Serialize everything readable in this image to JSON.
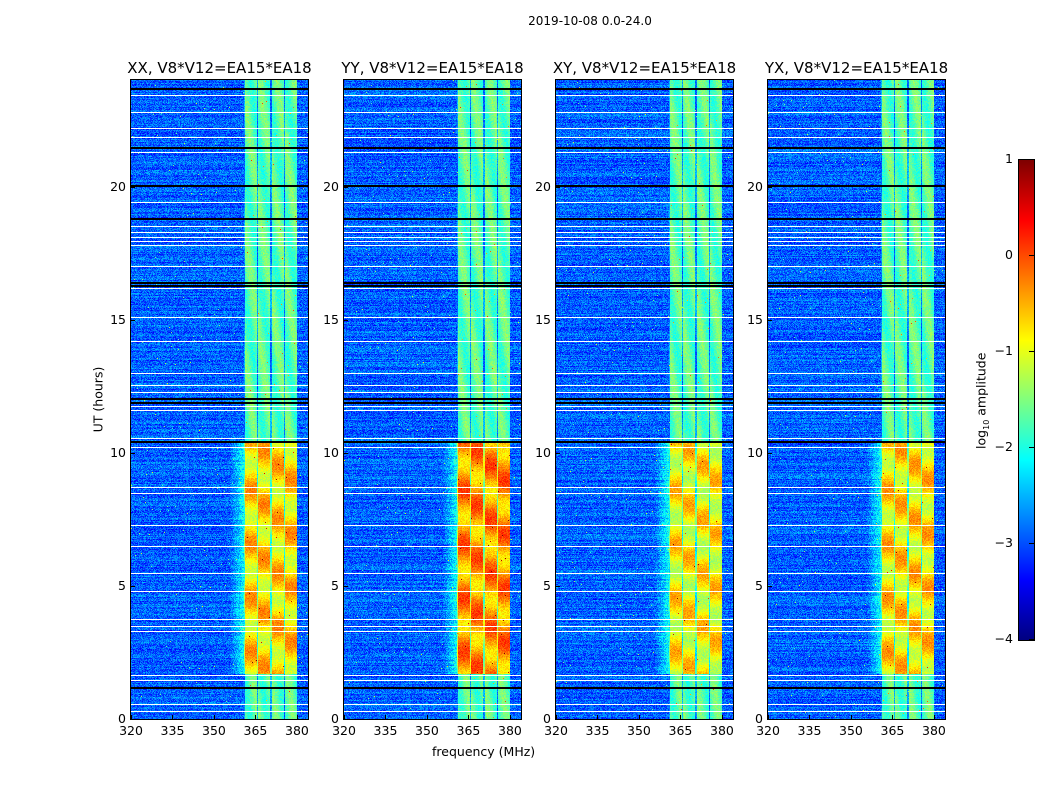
{
  "chart_data": {
    "type": "heatmap",
    "title": "2019-10-08 0.0-24.0",
    "xlabel": "frequency (MHz)",
    "ylabel": "UT (hours)",
    "xlim": [
      320,
      384
    ],
    "ylim": [
      0,
      24
    ],
    "xticks": [
      "320",
      "335",
      "350",
      "365",
      "380"
    ],
    "xtick_values": [
      320,
      335,
      350,
      365,
      380
    ],
    "yticks": [
      "0",
      "5",
      "10",
      "15",
      "20"
    ],
    "ytick_values": [
      0,
      5,
      10,
      15,
      20
    ],
    "panels": [
      {
        "title": "XX, V8*V12=EA15*EA18",
        "active_level": -0.7
      },
      {
        "title": "YY, V8*V12=EA15*EA18",
        "active_level": -0.35
      },
      {
        "title": "XY, V8*V12=EA15*EA18",
        "active_level": -0.85
      },
      {
        "title": "YX, V8*V12=EA15*EA18",
        "active_level": -0.75
      }
    ],
    "signal_band_mhz": [
      360.5,
      380
    ],
    "subbands": 4,
    "background_level": -2.9,
    "quiet_band_level": -1.7,
    "active_period_hours": [
      1.7,
      10.4
    ],
    "flagged_hours_white": [
      0.3,
      0.55,
      1.45,
      1.65,
      3.3,
      3.5,
      3.75,
      4.8,
      5.5,
      6.5,
      7.3,
      8.5,
      8.7,
      10.2,
      10.55,
      11.6,
      11.75,
      12.3,
      12.55,
      13.0,
      14.2,
      15.1,
      16.2,
      17.0,
      17.8,
      17.95,
      18.1,
      18.3,
      18.5,
      19.4,
      21.3,
      21.85,
      22.2,
      22.8,
      23.45
    ],
    "flagged_hours_black": [
      1.2,
      10.45,
      11.9,
      12.05,
      16.3,
      16.4,
      18.8,
      20.05,
      21.5,
      23.7
    ],
    "colorbar": {
      "label": "log10 amplitude",
      "label_main": "log",
      "label_sub": "10",
      "label_rest": " amplitude",
      "range": [
        -4,
        1
      ],
      "ticks": [
        "1",
        "0",
        "−1",
        "−2",
        "−3",
        "−4"
      ],
      "tick_values": [
        1,
        0,
        -1,
        -2,
        -3,
        -4
      ],
      "colormap": "jet"
    }
  }
}
